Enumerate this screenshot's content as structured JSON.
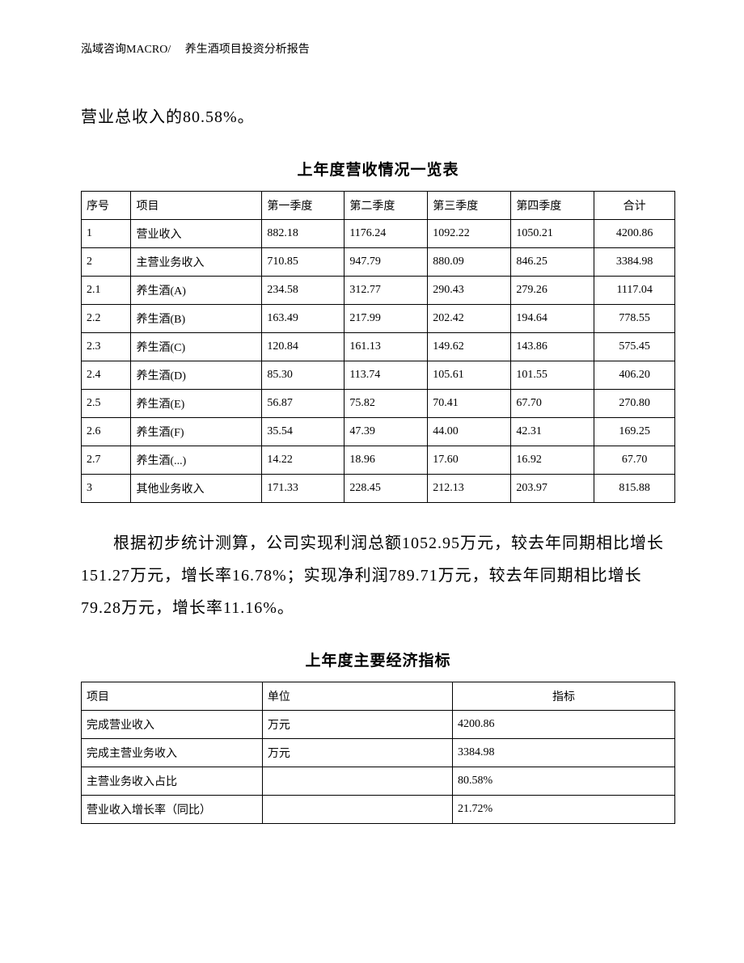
{
  "header": "泓域咨询MACRO/　 养生酒项目投资分析报告",
  "para1": "营业总收入的80.58%。",
  "table1": {
    "title": "上年度营收情况一览表",
    "columns": [
      "序号",
      "项目",
      "第一季度",
      "第二季度",
      "第三季度",
      "第四季度",
      "合计"
    ],
    "rows": [
      [
        "1",
        "营业收入",
        "882.18",
        "1176.24",
        "1092.22",
        "1050.21",
        "4200.86"
      ],
      [
        "2",
        "主营业务收入",
        "710.85",
        "947.79",
        "880.09",
        "846.25",
        "3384.98"
      ],
      [
        "2.1",
        "养生酒(A)",
        "234.58",
        "312.77",
        "290.43",
        "279.26",
        "1117.04"
      ],
      [
        "2.2",
        "养生酒(B)",
        "163.49",
        "217.99",
        "202.42",
        "194.64",
        "778.55"
      ],
      [
        "2.3",
        "养生酒(C)",
        "120.84",
        "161.13",
        "149.62",
        "143.86",
        "575.45"
      ],
      [
        "2.4",
        "养生酒(D)",
        "85.30",
        "113.74",
        "105.61",
        "101.55",
        "406.20"
      ],
      [
        "2.5",
        "养生酒(E)",
        "56.87",
        "75.82",
        "70.41",
        "67.70",
        "270.80"
      ],
      [
        "2.6",
        "养生酒(F)",
        "35.54",
        "47.39",
        "44.00",
        "42.31",
        "169.25"
      ],
      [
        "2.7",
        "养生酒(...)",
        "14.22",
        "18.96",
        "17.60",
        "16.92",
        "67.70"
      ],
      [
        "3",
        "其他业务收入",
        "171.33",
        "228.45",
        "212.13",
        "203.97",
        "815.88"
      ]
    ]
  },
  "para2": "根据初步统计测算，公司实现利润总额1052.95万元，较去年同期相比增长151.27万元，增长率16.78%；实现净利润789.71万元，较去年同期相比增长79.28万元，增长率11.16%。",
  "table2": {
    "title": "上年度主要经济指标",
    "columns": [
      "项目",
      "单位",
      "指标"
    ],
    "rows": [
      [
        "完成营业收入",
        "万元",
        "4200.86"
      ],
      [
        "完成主营业务收入",
        "万元",
        "3384.98"
      ],
      [
        "主营业务收入占比",
        "",
        "80.58%"
      ],
      [
        "营业收入增长率（同比）",
        "",
        "21.72%"
      ]
    ]
  }
}
